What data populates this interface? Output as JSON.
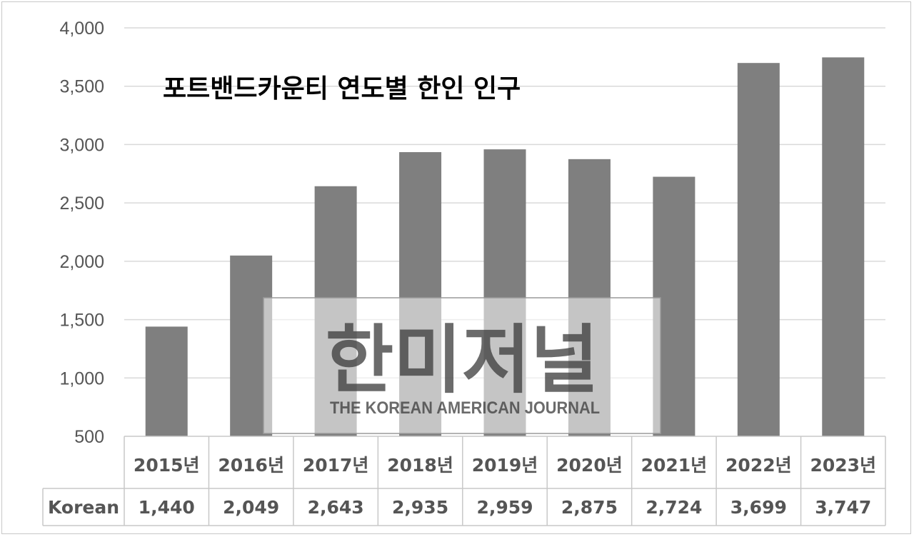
{
  "chart_data": {
    "type": "bar",
    "title": "포트밴드카운티 연도별 한인 인구",
    "categories": [
      "2015년",
      "2016년",
      "2017년",
      "2018년",
      "2019년",
      "2020년",
      "2021년",
      "2022년",
      "2023년"
    ],
    "series": [
      {
        "name": "Korean",
        "values": [
          1440,
          2049,
          2643,
          2935,
          2959,
          2875,
          2724,
          3699,
          3747
        ],
        "color": "#7f7f7f"
      }
    ],
    "value_labels": [
      "1,440",
      "2,049",
      "2,643",
      "2,935",
      "2,959",
      "2,875",
      "2,724",
      "3,699",
      "3,747"
    ],
    "ylim": [
      500,
      4000
    ],
    "yticks": [
      500,
      1000,
      1500,
      2000,
      2500,
      3000,
      3500,
      4000
    ],
    "ytick_labels": [
      "500",
      "1,000",
      "1,500",
      "2,000",
      "2,500",
      "3,000",
      "3,500",
      "4,000"
    ],
    "grid": true,
    "data_table": true,
    "colors": {
      "bar": "#7f7f7f",
      "grid": "#d9d9d9",
      "text": "#555555"
    }
  },
  "watermark": {
    "main": "한미저널",
    "sub": "THE KOREAN AMERICAN JOURNAL"
  }
}
